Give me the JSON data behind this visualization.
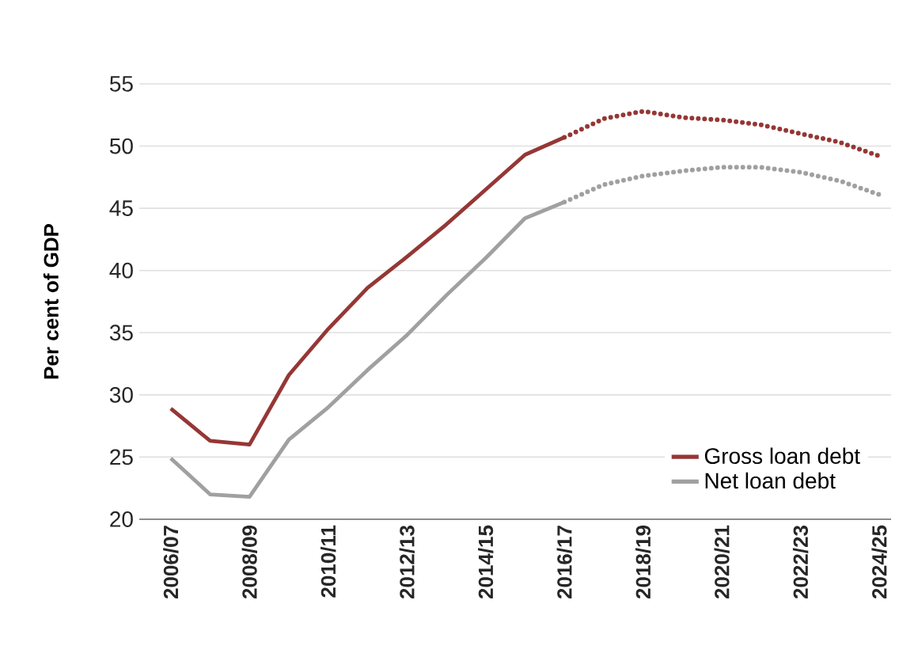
{
  "chart_data": {
    "type": "line",
    "ylabel": "Per cent of GDP",
    "categories": [
      "2006/07",
      null,
      "2008/09",
      null,
      "2010/11",
      null,
      "2012/13",
      null,
      "2014/15",
      null,
      "2016/17",
      null,
      "2018/19",
      null,
      "2020/21",
      null,
      "2022/23",
      null,
      "2024/25"
    ],
    "series": [
      {
        "name": "Gross loan debt",
        "color": "#953735",
        "line_style": "solid",
        "values": [
          28.9,
          26.3,
          26.0,
          31.6,
          35.3,
          38.6,
          41.1,
          43.7,
          46.5,
          49.3,
          50.7,
          null,
          null,
          null,
          null,
          null,
          null,
          null,
          null
        ]
      },
      {
        "color": "#953735",
        "line_style": "dotted",
        "values": [
          null,
          null,
          null,
          null,
          null,
          null,
          null,
          null,
          null,
          null,
          50.7,
          52.2,
          52.8,
          52.3,
          52.1,
          51.7,
          51.0,
          50.3,
          49.2
        ]
      },
      {
        "name": "Net loan debt",
        "color": "#a0a0a0",
        "line_style": "solid",
        "values": [
          24.9,
          22.0,
          21.8,
          26.4,
          29.0,
          32.0,
          34.8,
          38.0,
          41.0,
          44.2,
          45.5,
          null,
          null,
          null,
          null,
          null,
          null,
          null,
          null
        ]
      },
      {
        "color": "#a0a0a0",
        "line_style": "dotted",
        "values": [
          null,
          null,
          null,
          null,
          null,
          null,
          null,
          null,
          null,
          null,
          45.5,
          46.9,
          47.6,
          48.0,
          48.3,
          48.3,
          47.9,
          47.2,
          46.1
        ]
      }
    ],
    "ylim": [
      20,
      55
    ],
    "yticks": [
      20,
      25,
      30,
      35,
      40,
      45,
      50,
      55
    ],
    "grid": "y",
    "legend": "bottom right",
    "marker": "none"
  }
}
